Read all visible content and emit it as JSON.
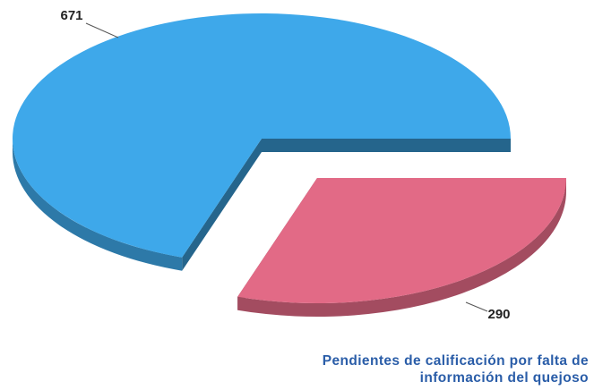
{
  "chart_data": {
    "type": "pie",
    "values": [
      671,
      290
    ],
    "colors": [
      "#3ea8ea",
      "#e26a86"
    ],
    "caption": "Pendientes de calificación por falta de información del quejoso"
  }
}
